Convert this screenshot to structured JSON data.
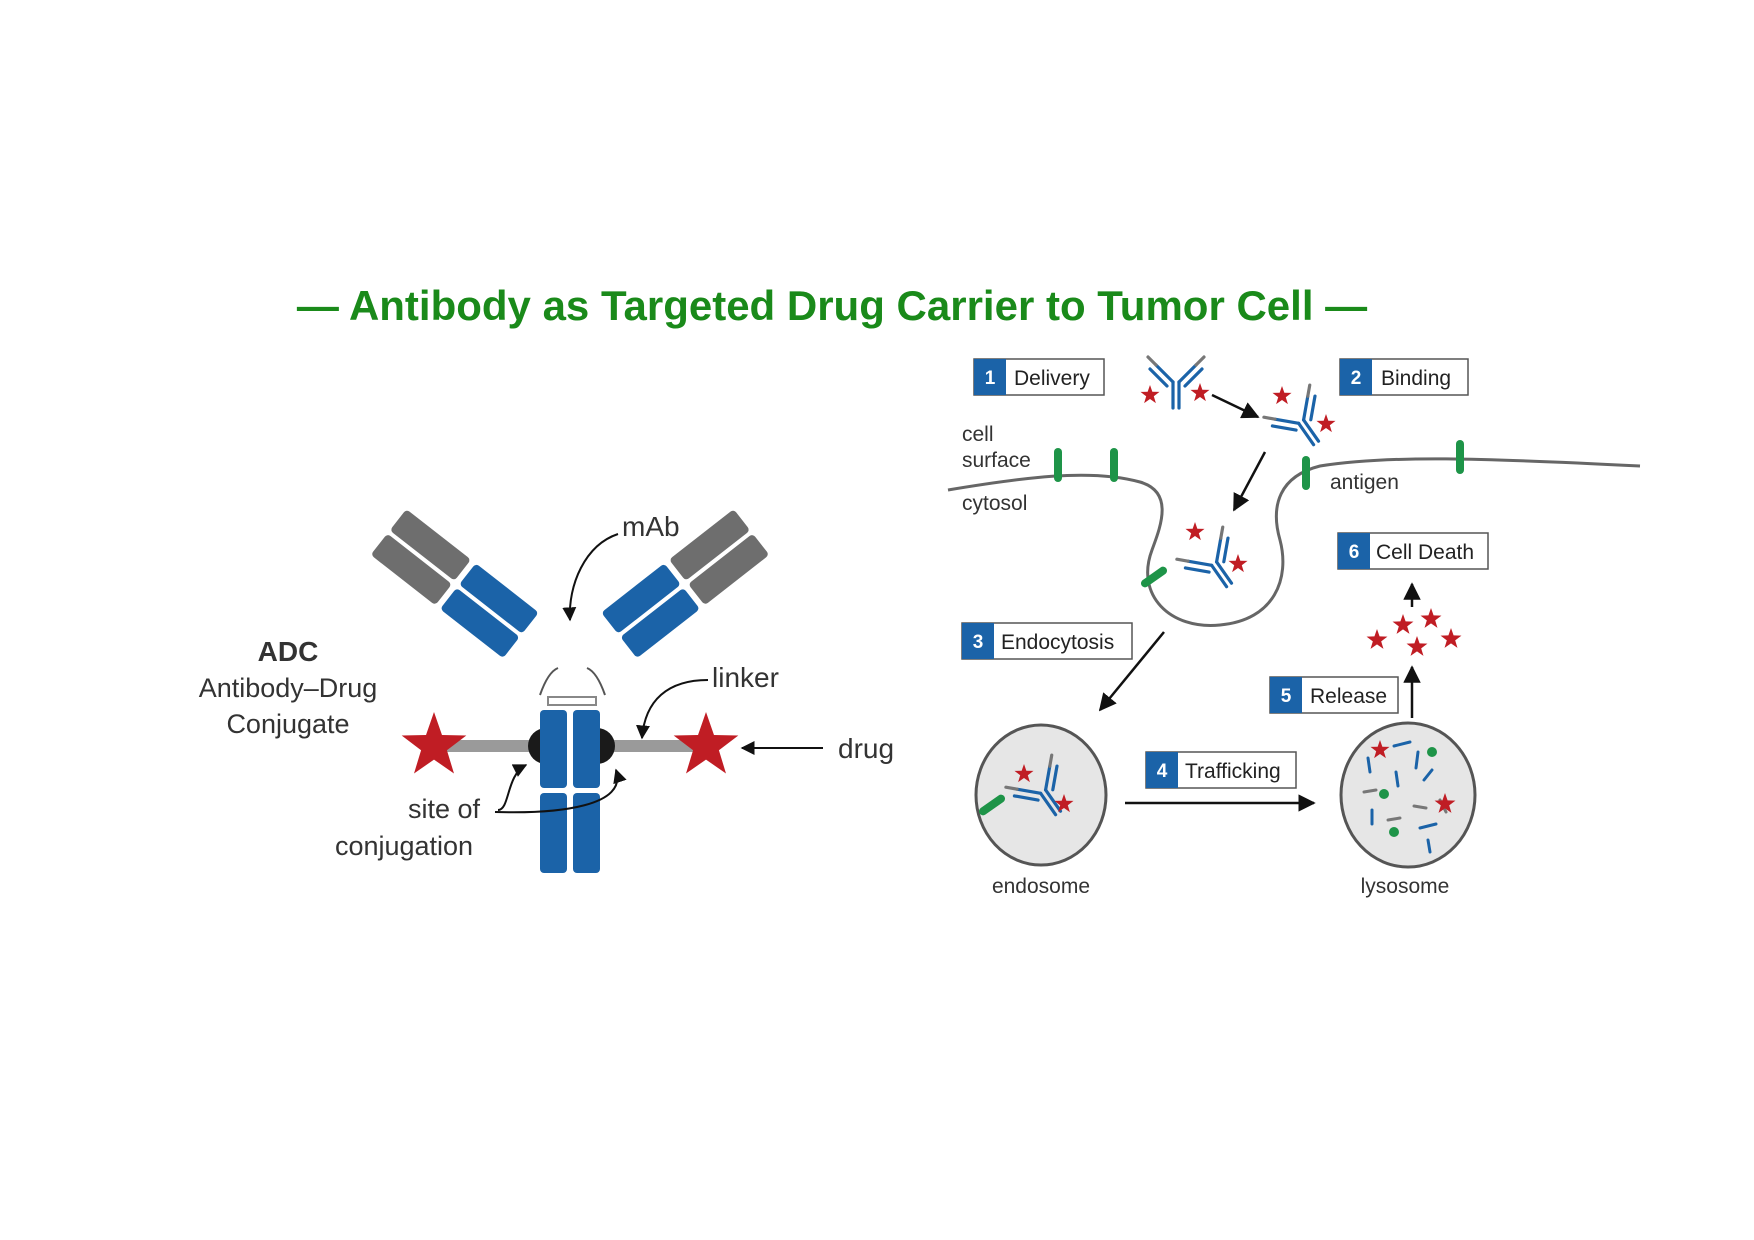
{
  "title": "— Antibody as Targeted Drug Carrier to Tumor Cell —",
  "colors": {
    "title_green": "#1a8a1a",
    "antibody_blue": "#1b63a8",
    "antibody_grey": "#6e6e6e",
    "drug_red": "#c01d24",
    "antigen_green": "#1e9448",
    "step_box_blue": "#1b63a8"
  },
  "adc": {
    "heading": "ADC",
    "subtitle_line1": "Antibody–Drug",
    "subtitle_line2": "Conjugate",
    "label_mab": "mAb",
    "label_linker": "linker",
    "label_drug": "drug",
    "label_site_line1": "site of",
    "label_site_line2": "conjugation"
  },
  "mechanism": {
    "steps": [
      {
        "num": "1",
        "label": "Delivery"
      },
      {
        "num": "2",
        "label": "Binding"
      },
      {
        "num": "3",
        "label": "Endocytosis"
      },
      {
        "num": "4",
        "label": "Trafficking"
      },
      {
        "num": "5",
        "label": "Release"
      },
      {
        "num": "6",
        "label": "Cell Death"
      }
    ],
    "labels": {
      "cell": "cell",
      "surface": "surface",
      "cytosol": "cytosol",
      "antigen": "antigen",
      "endosome": "endosome",
      "lysosome": "lysosome"
    }
  }
}
